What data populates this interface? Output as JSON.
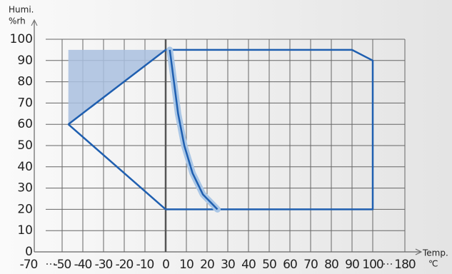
{
  "chart_data": {
    "type": "line",
    "ylabel": "Humi.",
    "yunit": "%rh",
    "xlabel": "Temp.",
    "xunit": "℃",
    "xlim": [
      -70,
      180
    ],
    "xticks": [
      -70,
      -50,
      -40,
      -30,
      -20,
      -10,
      0,
      10,
      20,
      30,
      40,
      50,
      60,
      70,
      80,
      90,
      100,
      180
    ],
    "ylim": [
      0,
      100
    ],
    "yticks": [
      0,
      10,
      20,
      30,
      40,
      50,
      60,
      70,
      80,
      90,
      100
    ],
    "grid": true,
    "regions": [
      {
        "color": "#a9bfdf",
        "x": [
          -47,
          0,
          -47
        ],
        "values": [
          95,
          95,
          60
        ]
      }
    ],
    "series": [
      {
        "color": "#1f5fb0",
        "x": [
          -47,
          0,
          90,
          100,
          100,
          0,
          -47
        ],
        "values": [
          60,
          95,
          95,
          90,
          20,
          20,
          60
        ]
      },
      {
        "color": "#1f5fb0",
        "band_color": "#a9c6e6",
        "x": [
          2,
          4,
          6,
          9,
          13,
          18,
          25
        ],
        "values": [
          95,
          80,
          65,
          50,
          37,
          27,
          20
        ]
      }
    ]
  }
}
